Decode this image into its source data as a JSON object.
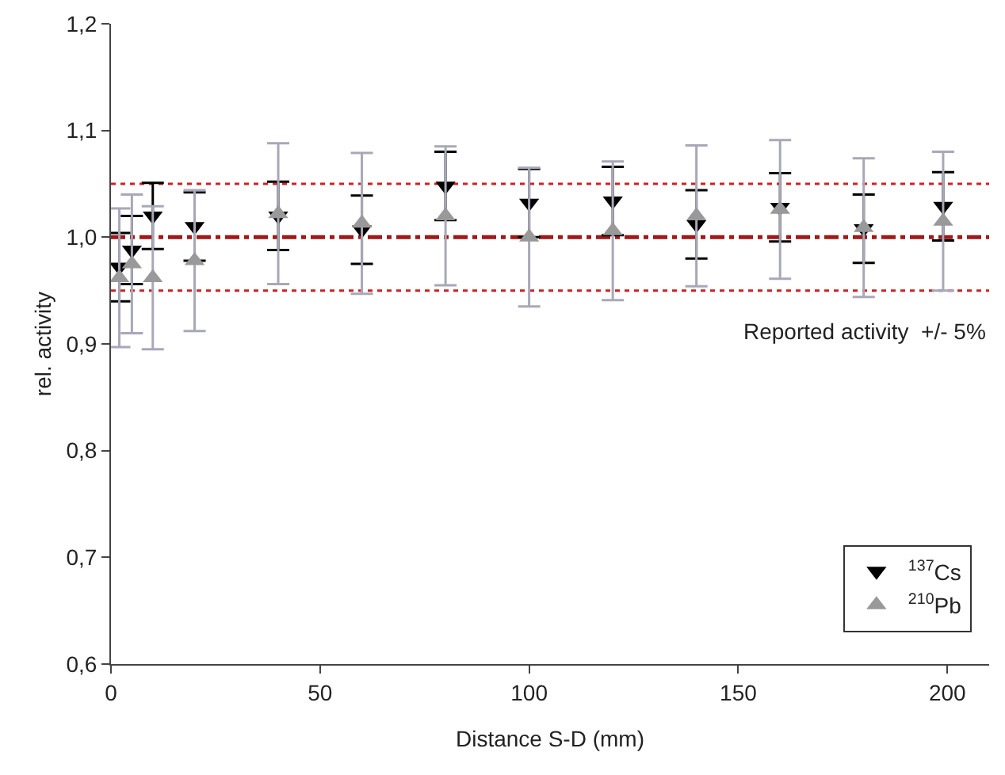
{
  "chart_data": {
    "type": "scatter",
    "xlabel": "Distance S-D (mm)",
    "ylabel": "rel. activity",
    "x": [
      2,
      5,
      10,
      20,
      40,
      60,
      80,
      100,
      120,
      140,
      160,
      180,
      199
    ],
    "series": [
      {
        "name": "$^{137}$Cs",
        "color": "#000000",
        "marker": "triangle-down",
        "values": [
          0.972,
          0.988,
          1.02,
          1.01,
          1.02,
          1.007,
          1.048,
          1.032,
          1.034,
          1.012,
          1.028,
          1.008,
          1.029
        ],
        "errors": [
          0.032,
          0.032,
          0.031,
          0.032,
          0.032,
          0.032,
          0.032,
          0.032,
          0.032,
          0.032,
          0.032,
          0.032,
          0.032
        ]
      },
      {
        "name": "$^{210}$Pb",
        "color": "#999999",
        "marker": "triangle",
        "values": [
          0.962,
          0.975,
          0.962,
          0.978,
          1.022,
          1.013,
          1.02,
          1.0,
          1.006,
          1.02,
          1.026,
          1.009,
          1.015
        ],
        "errors": [
          0.065,
          0.065,
          0.067,
          0.066,
          0.066,
          0.066,
          0.065,
          0.065,
          0.065,
          0.066,
          0.065,
          0.065,
          0.065
        ]
      }
    ],
    "xlim": [
      0,
      210
    ],
    "xticks": [
      0,
      50,
      100,
      150,
      200
    ],
    "ylim": [
      0.6,
      1.2
    ],
    "yticks": [
      {
        "value": 0.6,
        "label": "0,6"
      },
      {
        "value": 0.7,
        "label": "0,7"
      },
      {
        "value": 0.8,
        "label": "0,8"
      },
      {
        "value": 0.9,
        "label": "0,9"
      },
      {
        "value": 1.0,
        "label": "1,0"
      },
      {
        "value": 1.1,
        "label": "1,1"
      },
      {
        "value": 1.2,
        "label": "1,2"
      }
    ],
    "ref_lines": [
      {
        "axis": "y",
        "value": 1.0,
        "color": "#a01818",
        "line_style": "dashdot"
      },
      {
        "axis": "y",
        "value": 1.05,
        "color": "#cc2222",
        "line_style": "dotted"
      },
      {
        "axis": "y",
        "value": 0.95,
        "color": "#cc2222",
        "line_style": "dotted"
      }
    ],
    "annotations": [
      "Reported activity  +/- 5%"
    ],
    "grid": false,
    "legend": "bottom right"
  }
}
